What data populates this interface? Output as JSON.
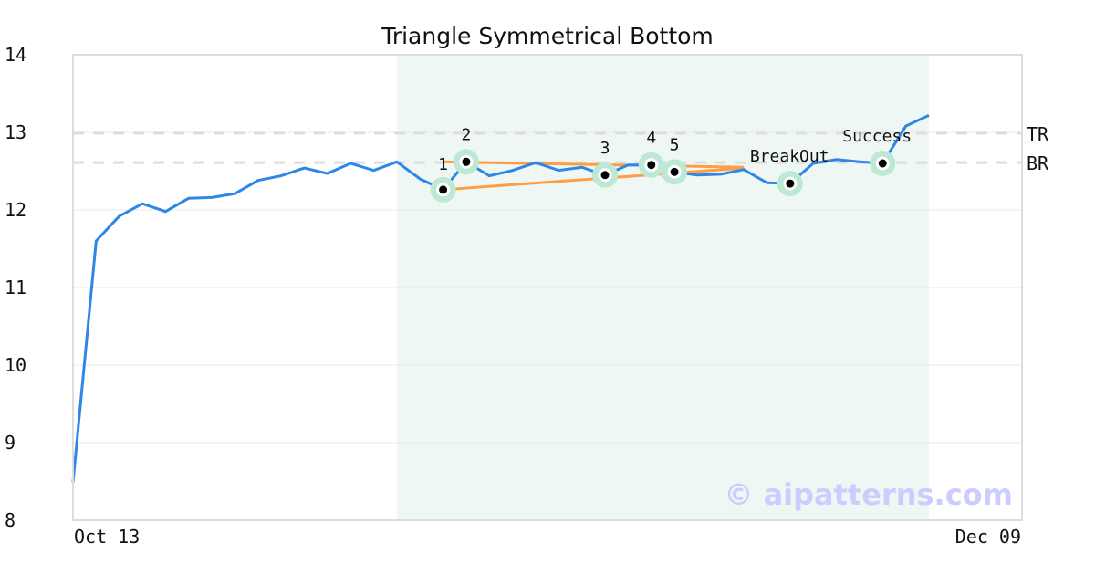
{
  "chart_data": {
    "type": "line",
    "title": "Triangle Symmetrical Bottom",
    "ylim": [
      8,
      14
    ],
    "yticks": [
      "8",
      "9",
      "10",
      "11",
      "12",
      "13",
      "14"
    ],
    "xtick_labels": [
      "Oct 13",
      "Dec 09"
    ],
    "grid": true,
    "values": [
      8.49,
      11.6,
      11.92,
      12.08,
      11.98,
      12.15,
      12.16,
      12.21,
      12.38,
      12.44,
      12.54,
      12.47,
      12.6,
      12.51,
      12.62,
      12.4,
      12.26,
      12.62,
      12.44,
      12.51,
      12.61,
      12.51,
      12.55,
      12.45,
      12.58,
      12.58,
      12.49,
      12.45,
      12.46,
      12.52,
      12.35,
      12.34,
      12.6,
      12.65,
      12.62,
      12.6,
      13.08,
      13.22
    ],
    "pattern_region": [
      14,
      37
    ],
    "levels": [
      {
        "label": "TR",
        "value": 12.99
      },
      {
        "label": "BR",
        "value": 12.61
      }
    ],
    "trendlines": [
      {
        "from": [
          16,
          12.62
        ],
        "to": [
          29,
          12.55
        ]
      },
      {
        "from": [
          16,
          12.26
        ],
        "to": [
          29,
          12.54
        ]
      }
    ],
    "markers": [
      {
        "label": "1",
        "index": 16
      },
      {
        "label": "2",
        "index": 17
      },
      {
        "label": "3",
        "index": 23
      },
      {
        "label": "4",
        "index": 25
      },
      {
        "label": "5",
        "index": 26
      },
      {
        "label": "BreakOut",
        "index": 31
      },
      {
        "label": "Success",
        "index": 35
      }
    ],
    "watermark": "© aipatterns.com",
    "colors": {
      "line": "#2e87e8",
      "trend": "#ff9d45",
      "region": "#eef7f3",
      "marker": "#bde8d4",
      "watermark": "#ccccff"
    }
  }
}
